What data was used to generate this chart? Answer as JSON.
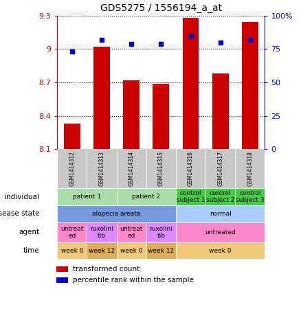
{
  "title": "GDS5275 / 1556194_a_at",
  "samples": [
    "GSM1414312",
    "GSM1414313",
    "GSM1414314",
    "GSM1414315",
    "GSM1414316",
    "GSM1414317",
    "GSM1414318"
  ],
  "bar_values": [
    8.33,
    9.02,
    8.72,
    8.69,
    9.28,
    8.78,
    9.24
  ],
  "dot_values": [
    73,
    82,
    79,
    79,
    85,
    80,
    82
  ],
  "ylim_left": [
    8.1,
    9.3
  ],
  "ylim_right": [
    0,
    100
  ],
  "yticks_left": [
    8.1,
    8.4,
    8.7,
    9.0,
    9.3
  ],
  "yticks_right": [
    0,
    25,
    50,
    75,
    100
  ],
  "ytick_labels_left": [
    "8.1",
    "8.4",
    "8.7",
    "9",
    "9.3"
  ],
  "ytick_labels_right": [
    "0",
    "25",
    "50",
    "75",
    "100%"
  ],
  "bar_color": "#cc0000",
  "dot_color": "#0000cc",
  "annotation_rows": [
    {
      "label": "individual",
      "cells": [
        {
          "text": "patient 1",
          "span": 2,
          "color": "#aaddaa"
        },
        {
          "text": "patient 2",
          "span": 2,
          "color": "#aaddaa"
        },
        {
          "text": "control\nsubject 1",
          "span": 1,
          "color": "#44cc44"
        },
        {
          "text": "control\nsubject 2",
          "span": 1,
          "color": "#44cc44"
        },
        {
          "text": "control\nsubject 3",
          "span": 1,
          "color": "#44cc44"
        }
      ]
    },
    {
      "label": "disease state",
      "cells": [
        {
          "text": "alopecia areata",
          "span": 4,
          "color": "#7799dd"
        },
        {
          "text": "normal",
          "span": 3,
          "color": "#aaccff"
        }
      ]
    },
    {
      "label": "agent",
      "cells": [
        {
          "text": "untreat\ned",
          "span": 1,
          "color": "#ff88cc"
        },
        {
          "text": "ruxolini\ntib",
          "span": 1,
          "color": "#dd88ff"
        },
        {
          "text": "untreat\ned",
          "span": 1,
          "color": "#ff88cc"
        },
        {
          "text": "ruxolini\ntib",
          "span": 1,
          "color": "#dd88ff"
        },
        {
          "text": "untreated",
          "span": 3,
          "color": "#ff88cc"
        }
      ]
    },
    {
      "label": "time",
      "cells": [
        {
          "text": "week 0",
          "span": 1,
          "color": "#f0c878"
        },
        {
          "text": "week 12",
          "span": 1,
          "color": "#ddaa55"
        },
        {
          "text": "week 0",
          "span": 1,
          "color": "#f0c878"
        },
        {
          "text": "week 12",
          "span": 1,
          "color": "#ddaa55"
        },
        {
          "text": "week 0",
          "span": 3,
          "color": "#f0c878"
        }
      ]
    }
  ],
  "legend_items": [
    {
      "color": "#cc0000",
      "label": "transformed count"
    },
    {
      "color": "#0000cc",
      "label": "percentile rank within the sample"
    }
  ],
  "fig_width": 4.38,
  "fig_height": 4.53,
  "dpi": 100
}
